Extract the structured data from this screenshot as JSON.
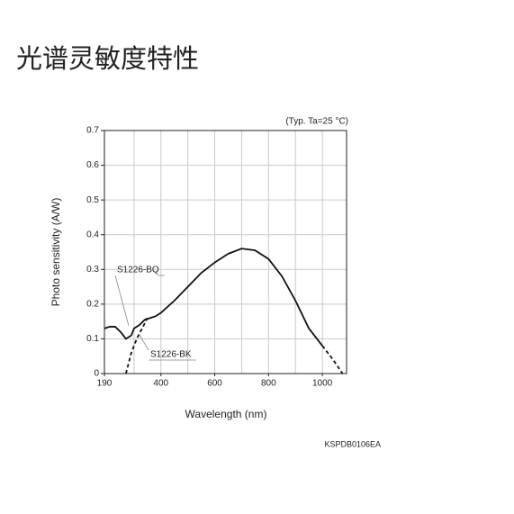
{
  "header": {
    "title": "光谱灵敏度特性"
  },
  "chart_data": {
    "type": "line",
    "note": "(Typ. Ta=25 °C)",
    "code": "KSPDB0106EA",
    "x_label": "Wavelength (nm)",
    "y_label": "Photo sensitivity (A/W)",
    "xlim": [
      190,
      1090
    ],
    "ylim": [
      0,
      0.7
    ],
    "xticks": [
      190,
      400,
      600,
      800,
      1000
    ],
    "xgrid": [
      300,
      400,
      500,
      600,
      700,
      800,
      900,
      1000
    ],
    "yticks": [
      0,
      0.1,
      0.2,
      0.3,
      0.4,
      0.5,
      0.6,
      0.7
    ],
    "grid": true,
    "series": [
      {
        "name": "S1226-BQ",
        "color": "#111111",
        "dashed": false,
        "x": [
          190,
          210,
          230,
          250,
          270,
          290,
          300,
          320,
          340,
          360,
          380,
          400,
          450,
          500,
          550,
          600,
          650,
          700,
          750,
          800,
          850,
          900,
          950,
          1000
        ],
        "values": [
          0.13,
          0.135,
          0.135,
          0.12,
          0.1,
          0.11,
          0.13,
          0.14,
          0.155,
          0.16,
          0.165,
          0.175,
          0.21,
          0.25,
          0.29,
          0.32,
          0.345,
          0.36,
          0.355,
          0.33,
          0.28,
          0.21,
          0.13,
          0.08
        ]
      },
      {
        "name": "S1226-BK",
        "color": "#111111",
        "dashed": true,
        "x": [
          270,
          280,
          290,
          310,
          330,
          350,
          700,
          1000,
          1040,
          1075
        ],
        "values": [
          0,
          0.03,
          0.06,
          0.1,
          0.13,
          0.16,
          null,
          0.08,
          0.04,
          0
        ]
      }
    ]
  }
}
